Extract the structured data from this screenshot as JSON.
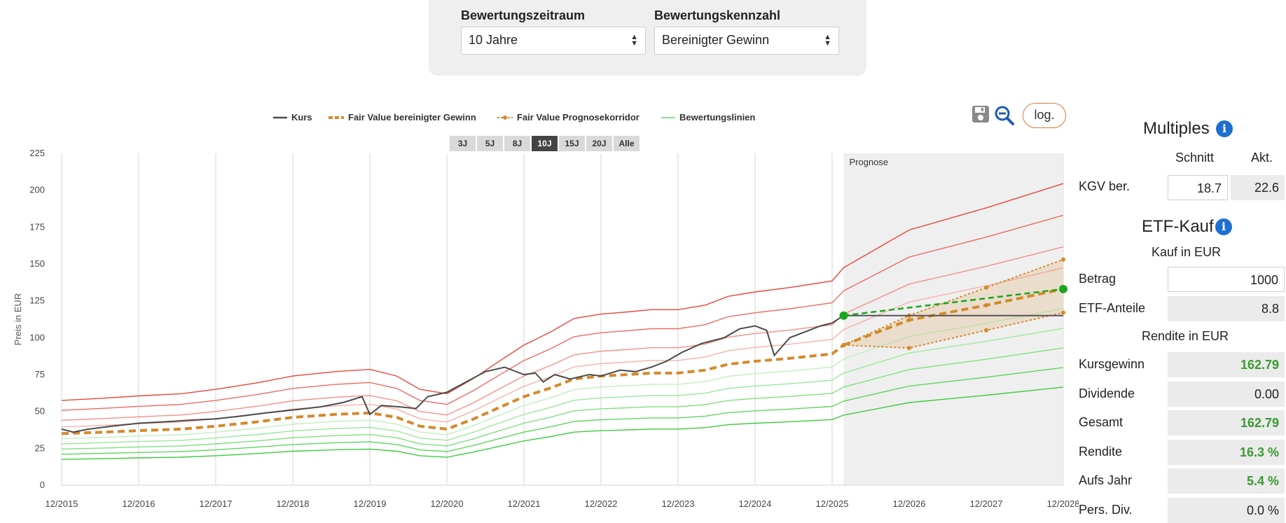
{
  "controls": {
    "period_label": "Bewertungszeitraum",
    "period_value": "10 Jahre",
    "metric_label": "Bewertungskennzahl",
    "metric_value": "Bereinigter Gewinn"
  },
  "legend": {
    "kurs": "Kurs",
    "fair_value": "Fair Value bereinigter Gewinn",
    "prognose_korridor": "Fair Value Prognosekorridor",
    "bewertungslinien": "Bewertungslinien"
  },
  "range_buttons": [
    "3J",
    "5J",
    "8J",
    "10J",
    "15J",
    "20J",
    "Alle"
  ],
  "active_range": "10J",
  "toolbar": {
    "log_label": "log.",
    "save_icon": "save-icon",
    "zoom_icon": "zoom-out-icon"
  },
  "colors": {
    "price": "#4a4a4a",
    "fair_value": "#d4892a",
    "red": "#e8453c",
    "green": "#42c742",
    "forecast_green": "#1aa51a"
  },
  "chart_data": {
    "type": "line",
    "ylabel": "Preis in EUR",
    "ylim": [
      0,
      225
    ],
    "yticks": [
      "0",
      "25",
      "50",
      "75",
      "100",
      "125",
      "150",
      "175",
      "200",
      "225"
    ],
    "xlim": [
      2015.95,
      2028.95
    ],
    "xticks": [
      {
        "x": 2015.95,
        "label": "12/2015"
      },
      {
        "x": 2016.95,
        "label": "12/2016"
      },
      {
        "x": 2017.95,
        "label": "12/2017"
      },
      {
        "x": 2018.95,
        "label": "12/2018"
      },
      {
        "x": 2019.95,
        "label": "12/2019"
      },
      {
        "x": 2020.95,
        "label": "12/2020"
      },
      {
        "x": 2021.95,
        "label": "12/2021"
      },
      {
        "x": 2022.95,
        "label": "12/2022"
      },
      {
        "x": 2023.95,
        "label": "12/2023"
      },
      {
        "x": 2024.95,
        "label": "12/2024"
      },
      {
        "x": 2025.95,
        "label": "12/2025"
      },
      {
        "x": 2026.95,
        "label": "12/2026"
      },
      {
        "x": 2027.95,
        "label": "12/2027"
      },
      {
        "x": 2028.95,
        "label": "12/2028"
      }
    ],
    "forecast_label": "Prognose",
    "forecast_start": 2026.1,
    "kurs": [
      [
        2015.95,
        38
      ],
      [
        2016.1,
        36
      ],
      [
        2016.3,
        38
      ],
      [
        2016.6,
        40
      ],
      [
        2016.95,
        42
      ],
      [
        2017.3,
        43
      ],
      [
        2017.6,
        44
      ],
      [
        2017.95,
        45
      ],
      [
        2018.3,
        47
      ],
      [
        2018.6,
        49
      ],
      [
        2018.95,
        51
      ],
      [
        2019.3,
        53
      ],
      [
        2019.6,
        56
      ],
      [
        2019.85,
        60
      ],
      [
        2019.95,
        48
      ],
      [
        2020.1,
        54
      ],
      [
        2020.35,
        53
      ],
      [
        2020.55,
        52
      ],
      [
        2020.7,
        60
      ],
      [
        2020.95,
        63
      ],
      [
        2021.2,
        70
      ],
      [
        2021.45,
        77
      ],
      [
        2021.7,
        80
      ],
      [
        2021.95,
        75
      ],
      [
        2022.1,
        76
      ],
      [
        2022.2,
        70
      ],
      [
        2022.35,
        75
      ],
      [
        2022.55,
        72
      ],
      [
        2022.8,
        75
      ],
      [
        2022.95,
        74
      ],
      [
        2023.2,
        78
      ],
      [
        2023.4,
        77
      ],
      [
        2023.6,
        80
      ],
      [
        2023.8,
        84
      ],
      [
        2024.0,
        90
      ],
      [
        2024.25,
        96
      ],
      [
        2024.55,
        100
      ],
      [
        2024.75,
        106
      ],
      [
        2024.95,
        108
      ],
      [
        2025.1,
        105
      ],
      [
        2025.2,
        88
      ],
      [
        2025.4,
        100
      ],
      [
        2025.6,
        104
      ],
      [
        2025.8,
        108
      ],
      [
        2025.95,
        110
      ],
      [
        2026.1,
        115
      ]
    ],
    "kurs_forecast": [
      [
        2026.1,
        115
      ],
      [
        2028.95,
        115
      ]
    ],
    "fair_value": [
      [
        2015.95,
        35
      ],
      [
        2016.5,
        36
      ],
      [
        2016.95,
        37
      ],
      [
        2017.5,
        38
      ],
      [
        2017.95,
        40
      ],
      [
        2018.5,
        43
      ],
      [
        2018.95,
        46
      ],
      [
        2019.5,
        48
      ],
      [
        2019.95,
        49
      ],
      [
        2020.3,
        46
      ],
      [
        2020.6,
        40
      ],
      [
        2020.95,
        38
      ],
      [
        2021.3,
        45
      ],
      [
        2021.6,
        52
      ],
      [
        2021.95,
        60
      ],
      [
        2022.3,
        66
      ],
      [
        2022.6,
        72
      ],
      [
        2022.95,
        74
      ],
      [
        2023.3,
        75
      ],
      [
        2023.6,
        76
      ],
      [
        2023.95,
        76
      ],
      [
        2024.3,
        78
      ],
      [
        2024.6,
        82
      ],
      [
        2024.95,
        84
      ],
      [
        2025.4,
        86
      ],
      [
        2025.95,
        89
      ],
      [
        2026.1,
        95
      ]
    ],
    "fair_value_forecast": [
      [
        2026.1,
        95
      ],
      [
        2026.95,
        112
      ],
      [
        2027.95,
        122
      ],
      [
        2028.95,
        133
      ]
    ],
    "corridor_upper": [
      [
        2026.1,
        95
      ],
      [
        2026.95,
        115
      ],
      [
        2027.95,
        134
      ],
      [
        2028.95,
        153
      ]
    ],
    "corridor_lower": [
      [
        2026.1,
        95
      ],
      [
        2026.95,
        93
      ],
      [
        2027.95,
        105
      ],
      [
        2028.95,
        117
      ]
    ],
    "target_line": [
      [
        2026.1,
        115
      ],
      [
        2028.95,
        133
      ]
    ],
    "bewertungslinien_multipliers": [
      1.5,
      1.35,
      1.2,
      1.1,
      1.0,
      0.9,
      0.8,
      0.7,
      0.6,
      0.5
    ]
  },
  "multiples": {
    "title": "Multiples",
    "head_avg": "Schnitt",
    "head_cur": "Akt.",
    "row_label": "KGV ber.",
    "avg": "18.7",
    "cur": "22.6"
  },
  "etf": {
    "title": "ETF-Kauf",
    "subtitle": "Kauf in EUR",
    "betrag_label": "Betrag",
    "betrag": "1000",
    "anteile_label": "ETF-Anteile",
    "anteile": "8.8",
    "rendite_title": "Rendite in EUR",
    "rows": [
      {
        "label": "Kursgewinn",
        "value": "162.79",
        "green": true
      },
      {
        "label": "Dividende",
        "value": "0.00",
        "green": false
      },
      {
        "label": "Gesamt",
        "value": "162.79",
        "green": true
      },
      {
        "label": "Rendite",
        "value": "16.3 %",
        "green": true
      },
      {
        "label": "Aufs Jahr",
        "value": "5.4 %",
        "green": true
      },
      {
        "label": "Pers. Div.",
        "value": "0.0 %",
        "green": false
      }
    ]
  }
}
